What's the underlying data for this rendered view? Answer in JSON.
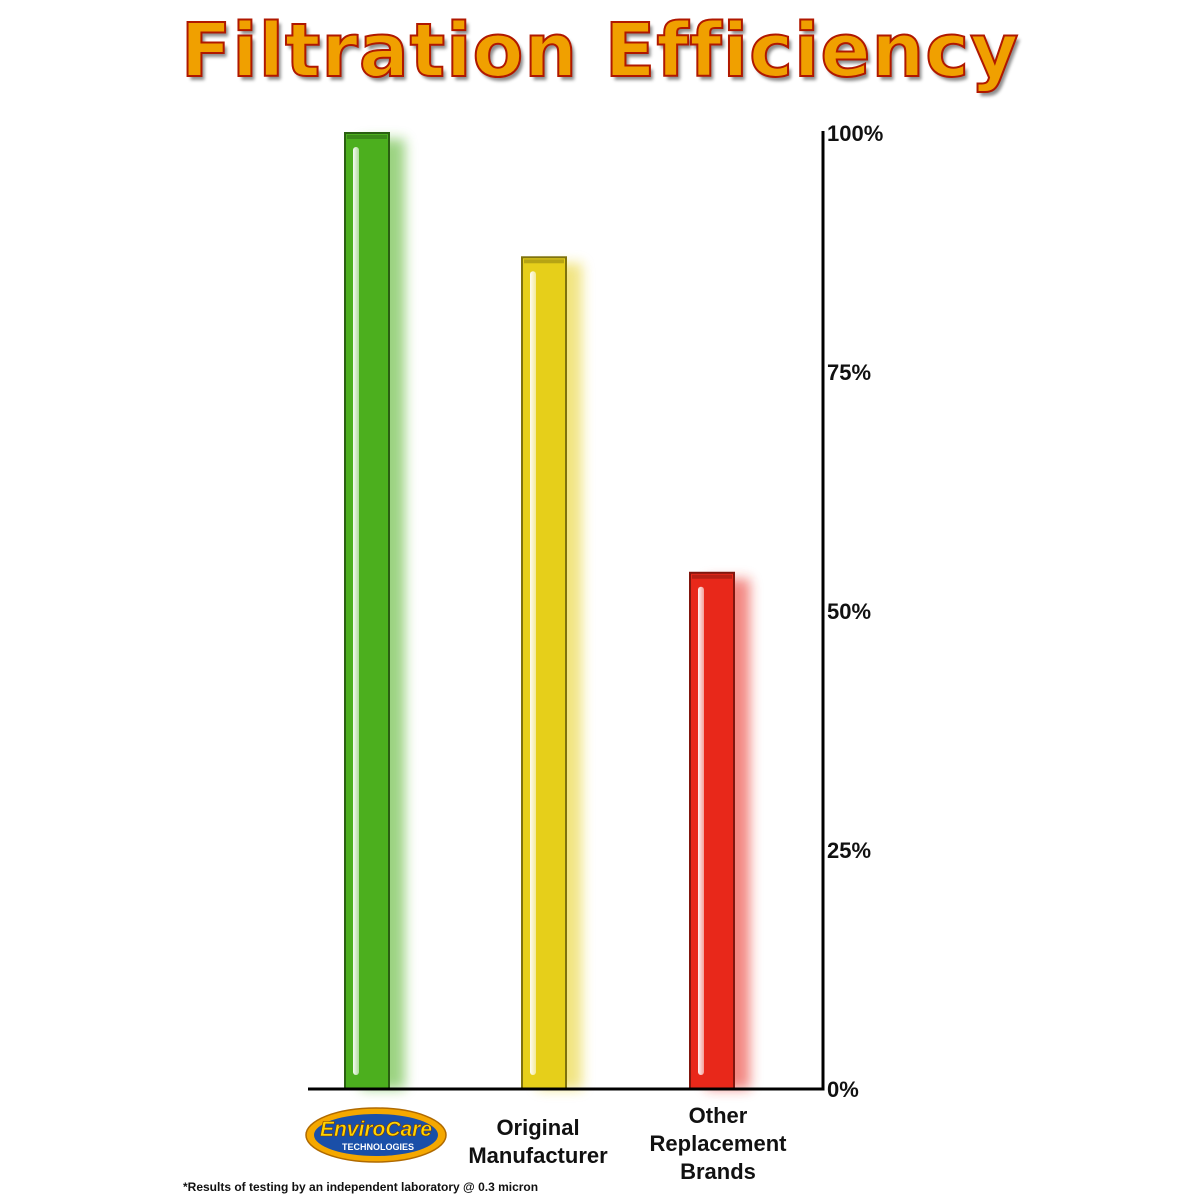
{
  "chart_data": {
    "type": "bar",
    "title": "Filtration Efficiency",
    "categories": [
      "EnviroCare Technologies",
      "Original Manufacturer",
      "Other Replacement Brands"
    ],
    "series": [
      {
        "values": [
          100,
          87,
          54
        ]
      }
    ],
    "bar_colors": [
      "#4caf1e",
      "#e6cf1a",
      "#e8281a"
    ],
    "ylim": [
      0,
      100
    ],
    "yticks": [
      0,
      25,
      50,
      75,
      100
    ],
    "ytick_labels": [
      "0%",
      "25%",
      "50%",
      "75%",
      "100%"
    ],
    "y_axis_side": "right",
    "grid": false,
    "legend": "none"
  },
  "labels": {
    "original_manufacturer": [
      "Original",
      "Manufacturer"
    ],
    "other_brands": [
      "Other",
      "Replacement",
      "Brands"
    ]
  },
  "logo": {
    "brand": "EnviroCare",
    "sub": "TECHNOLOGIES",
    "colors": {
      "ring": "#f5a800",
      "fill": "#1a4fa8",
      "text": "#ffd400"
    }
  },
  "footnote": "*Results of testing by an independent laboratory @ 0.3 micron"
}
